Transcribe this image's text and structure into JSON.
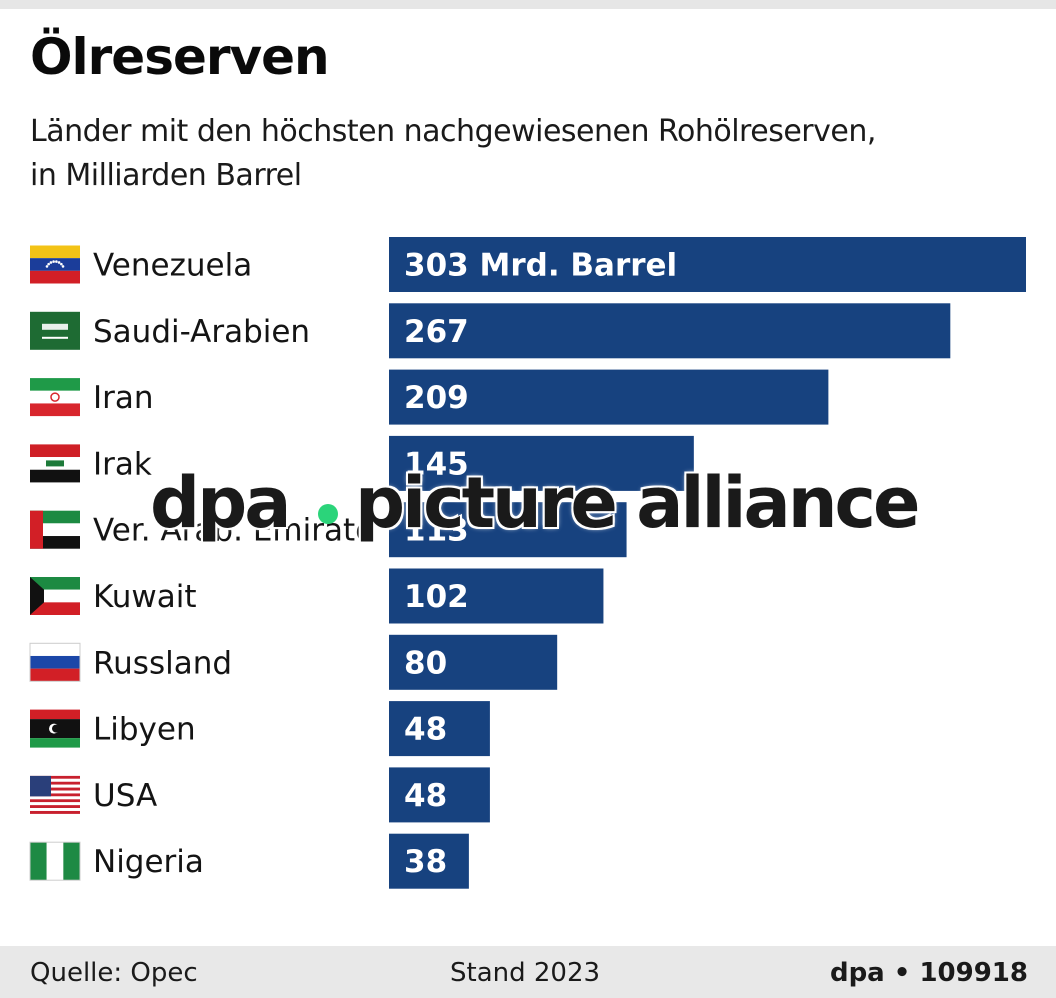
{
  "header": {
    "title": "Ölreserven",
    "subtitle_line1": "Länder mit den höchsten nachgewiesenen Rohölreserven,",
    "subtitle_line2": "in Milliarden Barrel"
  },
  "chart_data": {
    "type": "bar",
    "orientation": "horizontal",
    "title": "Ölreserven",
    "subtitle": "Länder mit den höchsten nachgewiesenen Rohölreserven, in Milliarden Barrel",
    "xlabel": "",
    "ylabel": "",
    "unit": "Mrd. Barrel",
    "xlim": [
      0,
      303
    ],
    "categories": [
      "Venezuela",
      "Saudi-Arabien",
      "Iran",
      "Irak",
      "Ver. Arab. Emirate",
      "Kuwait",
      "Russland",
      "Libyen",
      "USA",
      "Nigeria"
    ],
    "values": [
      303,
      267,
      209,
      145,
      113,
      102,
      80,
      48,
      48,
      38
    ],
    "value_labels": [
      "303 Mrd. Barrel",
      "267",
      "209",
      "145",
      "113",
      "102",
      "80",
      "48",
      "48",
      "38"
    ],
    "flags": [
      "venezuela-flag",
      "saudi-arabia-flag",
      "iran-flag",
      "iraq-flag",
      "uae-flag",
      "kuwait-flag",
      "russia-flag",
      "libya-flag",
      "usa-flag",
      "nigeria-flag"
    ],
    "bar_color": "#17427f"
  },
  "footer": {
    "source": "Quelle: Opec",
    "stand": "Stand 2023",
    "credit": "dpa • 109918"
  },
  "watermark": {
    "left": "dpa",
    "right": "picture alliance",
    "dot_color": "#2bd47a"
  }
}
